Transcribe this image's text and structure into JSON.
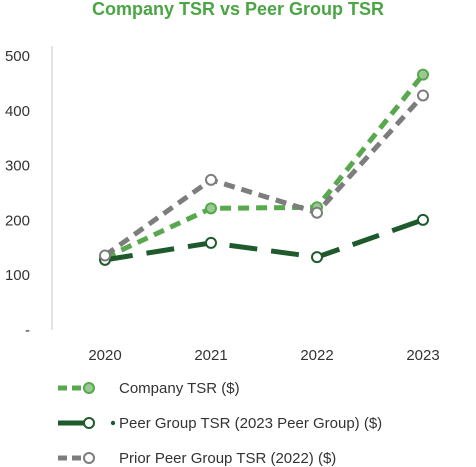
{
  "chart_data": {
    "type": "line",
    "title": "Company TSR vs Peer Group TSR",
    "xlabel": "",
    "ylabel": "",
    "categories": [
      "2020",
      "2021",
      "2022",
      "2023"
    ],
    "y_tick_labels": [
      "-",
      "100",
      "200",
      "300",
      "400",
      "500"
    ],
    "y_tick_values": [
      0,
      100,
      200,
      300,
      400,
      500
    ],
    "ylim": [
      0,
      500
    ],
    "grid": false,
    "legend_position": "bottom",
    "series": [
      {
        "name": "Company TSR ($)",
        "values": [
          132,
          222,
          224,
          466
        ],
        "color": "#58a84e",
        "fill": "#9bc994",
        "dash": "short"
      },
      {
        "name": "Peer Group TSR (2023 Peer Group) ($)",
        "values": [
          128,
          159,
          133,
          201
        ],
        "color": "#1e5a2b",
        "fill": "#ffffff",
        "dash": "long"
      },
      {
        "name": "Prior Peer Group TSR (2022) ($)",
        "values": [
          136,
          274,
          214,
          428
        ],
        "color": "#7d7d7d",
        "fill": "#ffffff",
        "dash": "short"
      }
    ]
  }
}
